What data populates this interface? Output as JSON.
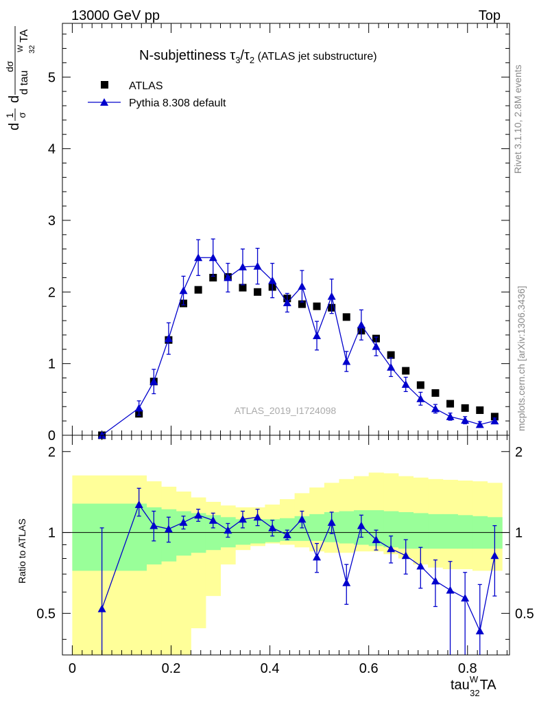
{
  "header": {
    "energy_label": "13000 GeV pp",
    "process_label": "Top"
  },
  "side_text": {
    "rivet": "Rivet 3.1.10,  2.8M events",
    "mcplots": "mcplots.cern.ch [arXiv:1306.3436]"
  },
  "watermark": "ATLAS_2019_I1724098",
  "colors": {
    "data": "#000000",
    "mc": "#0000cc",
    "band_inner": "#99ff99",
    "band_outer": "#ffff99"
  },
  "chart_data": [
    {
      "type": "scatter",
      "title": "N-subjettiness τ3/τ2 (ATLAS jet substructure)",
      "title_parts": {
        "lead": "N-subjettiness ",
        "t3": "τ",
        "t3_sub": "3",
        "slash": "/",
        "t2": "τ",
        "t2_sub": "2",
        "tail": " (ATLAS jet substructure)"
      },
      "ylabel": "1/σ dσ/d tau32WTA",
      "ylabel_parts": {
        "d1": "d",
        "one": "1",
        "sigma": "σ",
        "d2": "d",
        "dsigma": "dσ",
        "dtau": "d tau",
        "sup": "W",
        "sub": "32",
        "ta": "TA"
      },
      "ylim": [
        0,
        5.75
      ],
      "y_ticks": [
        0,
        1,
        2,
        3,
        4,
        5
      ],
      "y_tick_labels": [
        "0",
        "1",
        "2",
        "3",
        "4",
        "5"
      ],
      "legend_position": "top-left",
      "series": [
        {
          "name": "ATLAS",
          "marker": "square",
          "x": [
            0.06,
            0.135,
            0.165,
            0.195,
            0.225,
            0.255,
            0.285,
            0.315,
            0.345,
            0.375,
            0.405,
            0.435,
            0.465,
            0.495,
            0.525,
            0.555,
            0.585,
            0.615,
            0.645,
            0.675,
            0.705,
            0.735,
            0.765,
            0.795,
            0.825,
            0.855
          ],
          "y": [
            0.0,
            0.3,
            0.75,
            1.33,
            1.84,
            2.03,
            2.2,
            2.21,
            2.06,
            2.0,
            2.07,
            1.91,
            1.83,
            1.8,
            1.78,
            1.65,
            1.46,
            1.35,
            1.12,
            0.9,
            0.7,
            0.59,
            0.44,
            0.38,
            0.35,
            0.26
          ]
        },
        {
          "name": "Pythia 8.308 default",
          "marker": "triangle",
          "x": [
            0.06,
            0.135,
            0.165,
            0.195,
            0.225,
            0.255,
            0.285,
            0.315,
            0.345,
            0.375,
            0.405,
            0.435,
            0.465,
            0.495,
            0.525,
            0.555,
            0.585,
            0.615,
            0.645,
            0.675,
            0.705,
            0.735,
            0.765,
            0.795,
            0.825,
            0.855
          ],
          "y": [
            0.0,
            0.38,
            0.75,
            1.35,
            2.02,
            2.48,
            2.48,
            2.2,
            2.35,
            2.36,
            2.16,
            1.85,
            2.08,
            1.39,
            1.94,
            1.03,
            1.54,
            1.24,
            0.95,
            0.71,
            0.51,
            0.37,
            0.26,
            0.21,
            0.15,
            0.2
          ],
          "yerr": [
            0.0,
            0.1,
            0.17,
            0.22,
            0.2,
            0.25,
            0.26,
            0.2,
            0.25,
            0.25,
            0.24,
            0.13,
            0.22,
            0.2,
            0.24,
            0.14,
            0.21,
            0.13,
            0.13,
            0.1,
            0.09,
            0.06,
            0.05,
            0.05,
            0.04,
            0.04
          ]
        }
      ]
    },
    {
      "type": "line",
      "ylabel": "Ratio to ATLAS",
      "xlabel": "tau32WTA",
      "xlabel_parts": {
        "main": "tau",
        "sup": "W",
        "sub": "32",
        "tail": "TA"
      },
      "xlim": [
        -0.02,
        0.885
      ],
      "x_ticks": [
        0,
        0.2,
        0.4,
        0.6,
        0.8
      ],
      "x_tick_labels": [
        "0",
        "0.2",
        "0.4",
        "0.6",
        "0.8"
      ],
      "ylim": [
        0.35,
        2.3
      ],
      "y_ticks": [
        0.5,
        1,
        2
      ],
      "y_tick_labels": [
        "0.5",
        "1",
        "2"
      ],
      "reference_line": 1,
      "band_edges": [
        0.0,
        0.12,
        0.15,
        0.18,
        0.21,
        0.24,
        0.27,
        0.3,
        0.33,
        0.36,
        0.39,
        0.42,
        0.45,
        0.48,
        0.51,
        0.54,
        0.57,
        0.6,
        0.63,
        0.66,
        0.69,
        0.72,
        0.75,
        0.78,
        0.81,
        0.84,
        0.87
      ],
      "band_inner_low": [
        0.72,
        0.72,
        0.76,
        0.78,
        0.82,
        0.84,
        0.86,
        0.88,
        0.9,
        0.91,
        0.92,
        0.93,
        0.93,
        0.93,
        0.92,
        0.91,
        0.9,
        0.89,
        0.88,
        0.87,
        0.87,
        0.87,
        0.87,
        0.87,
        0.87,
        0.87
      ],
      "band_inner_high": [
        1.28,
        1.28,
        1.24,
        1.22,
        1.2,
        1.18,
        1.16,
        1.14,
        1.12,
        1.12,
        1.12,
        1.13,
        1.15,
        1.17,
        1.19,
        1.2,
        1.21,
        1.21,
        1.2,
        1.19,
        1.18,
        1.17,
        1.17,
        1.16,
        1.15,
        1.14
      ],
      "band_outer_low": [
        0.35,
        0.35,
        0.35,
        0.35,
        0.35,
        0.44,
        0.58,
        0.76,
        0.86,
        0.89,
        0.91,
        0.9,
        0.88,
        0.85,
        0.84,
        0.84,
        0.85,
        0.85,
        0.83,
        0.8,
        0.76,
        0.74,
        0.73,
        0.73,
        0.72,
        0.72
      ],
      "band_outer_high": [
        1.63,
        1.63,
        1.55,
        1.48,
        1.42,
        1.35,
        1.3,
        1.26,
        1.24,
        1.24,
        1.27,
        1.33,
        1.4,
        1.47,
        1.53,
        1.58,
        1.62,
        1.67,
        1.66,
        1.62,
        1.6,
        1.58,
        1.57,
        1.56,
        1.55,
        1.53
      ],
      "series": [
        {
          "name": "Pythia 8.308 default / ATLAS",
          "x": [
            0.06,
            0.135,
            0.165,
            0.195,
            0.225,
            0.255,
            0.285,
            0.315,
            0.345,
            0.375,
            0.405,
            0.435,
            0.465,
            0.495,
            0.525,
            0.555,
            0.585,
            0.615,
            0.645,
            0.675,
            0.705,
            0.735,
            0.765,
            0.795,
            0.825,
            0.855
          ],
          "y": [
            0.52,
            1.27,
            1.06,
            1.03,
            1.09,
            1.16,
            1.11,
            1.02,
            1.12,
            1.14,
            1.04,
            0.98,
            1.12,
            0.81,
            1.09,
            0.65,
            1.06,
            0.94,
            0.87,
            0.82,
            0.75,
            0.66,
            0.61,
            0.57,
            0.43,
            0.82
          ],
          "yerr_low": [
            0.28,
            0.12,
            0.13,
            0.11,
            0.06,
            0.06,
            0.07,
            0.06,
            0.08,
            0.08,
            0.07,
            0.04,
            0.08,
            0.1,
            0.1,
            0.11,
            0.1,
            0.08,
            0.1,
            0.12,
            0.13,
            0.13,
            0.3,
            0.24,
            0.21,
            0.24
          ],
          "yerr_high": [
            0.52,
            0.19,
            0.14,
            0.11,
            0.06,
            0.06,
            0.07,
            0.06,
            0.08,
            0.08,
            0.07,
            0.04,
            0.08,
            0.1,
            0.1,
            0.11,
            0.1,
            0.08,
            0.1,
            0.12,
            0.13,
            0.13,
            0.17,
            0.14,
            0.21,
            0.24
          ]
        }
      ]
    }
  ]
}
